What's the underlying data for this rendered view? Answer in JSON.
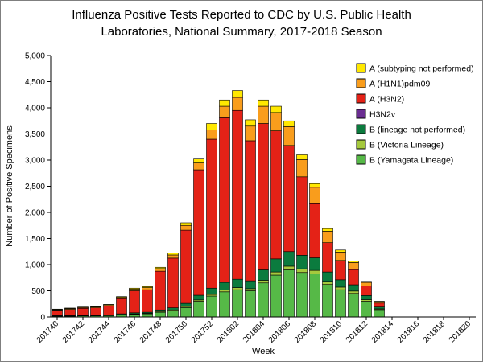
{
  "chart": {
    "title_line1": "Influenza Positive Tests Reported to CDC by U.S. Public Health",
    "title_line2": "Laboratories, National Summary, 2017-2018 Season"
  },
  "chart_data": {
    "type": "bar",
    "stacked": true,
    "title": "Influenza Positive Tests Reported to CDC by U.S. Public Health Laboratories, National Summary, 2017-2018 Season",
    "xlabel": "Week",
    "ylabel": "Number of Positive Specimens",
    "ylim": [
      0,
      5000
    ],
    "ytick_interval": 500,
    "grid": false,
    "legend_position": "top-right",
    "legend_order_top_to_bottom": [
      "A (subtyping not performed)",
      "A (H1N1)pdm09",
      "A (H3N2)",
      "H3N2v",
      "B (lineage not performed)",
      "B (Victoria Lineage)",
      "B (Yamagata Lineage)"
    ],
    "categories": [
      "201740",
      "201741",
      "201742",
      "201743",
      "201744",
      "201745",
      "201746",
      "201747",
      "201748",
      "201749",
      "201750",
      "201751",
      "201752",
      "201801",
      "201802",
      "201803",
      "201804",
      "201805",
      "201806",
      "201807",
      "201808",
      "201809",
      "201810",
      "201811",
      "201812",
      "201813",
      "201814",
      "201815",
      "201816",
      "201817",
      "201818",
      "201819",
      "201820"
    ],
    "xtick_labels_shown": [
      "201740",
      "201742",
      "201744",
      "201746",
      "201748",
      "201750",
      "201752",
      "201802",
      "201804",
      "201806",
      "201808",
      "201810",
      "201812",
      "201814",
      "201816",
      "201818",
      "201820"
    ],
    "ytick_labels": [
      "0",
      "500",
      "1,000",
      "1,500",
      "2,000",
      "2,500",
      "3,000",
      "3,500",
      "4,000",
      "4,500",
      "5,000"
    ],
    "series": [
      {
        "name": "B (Yamagata Lineage)",
        "color": "#56B947",
        "values": [
          15,
          15,
          20,
          20,
          25,
          35,
          50,
          60,
          90,
          120,
          180,
          300,
          400,
          480,
          520,
          500,
          650,
          800,
          900,
          850,
          820,
          620,
          520,
          450,
          300,
          140,
          0,
          0,
          0,
          0,
          0,
          0,
          0
        ]
      },
      {
        "name": "B (Victoria Lineage)",
        "color": "#A5C93D",
        "values": [
          5,
          5,
          5,
          5,
          5,
          10,
          10,
          10,
          15,
          15,
          20,
          25,
          30,
          35,
          40,
          40,
          50,
          60,
          70,
          70,
          70,
          60,
          50,
          45,
          30,
          15,
          0,
          0,
          0,
          0,
          0,
          0,
          0
        ]
      },
      {
        "name": "B (lineage not performed)",
        "color": "#0B7B3E",
        "values": [
          5,
          5,
          5,
          10,
          10,
          15,
          20,
          20,
          30,
          40,
          60,
          90,
          120,
          145,
          160,
          150,
          200,
          250,
          280,
          260,
          240,
          180,
          140,
          120,
          80,
          35,
          0,
          0,
          0,
          0,
          0,
          0,
          0
        ]
      },
      {
        "name": "H3N2v",
        "color": "#6A2D91",
        "values": [
          0,
          0,
          0,
          0,
          0,
          0,
          0,
          0,
          0,
          0,
          0,
          0,
          0,
          0,
          0,
          0,
          0,
          0,
          0,
          0,
          0,
          0,
          0,
          0,
          0,
          0,
          0,
          0,
          0,
          0,
          0,
          0,
          0
        ]
      },
      {
        "name": "A (H3N2)",
        "color": "#E42217",
        "values": [
          105,
          120,
          135,
          140,
          170,
          290,
          420,
          430,
          740,
          950,
          1400,
          2400,
          2850,
          3150,
          3230,
          2680,
          2800,
          2450,
          2030,
          1500,
          1050,
          560,
          370,
          290,
          180,
          75,
          0,
          0,
          0,
          0,
          0,
          0,
          0
        ]
      },
      {
        "name": "A (H1N1)pdm09",
        "color": "#F99D1C",
        "values": [
          10,
          15,
          15,
          15,
          20,
          25,
          30,
          40,
          50,
          60,
          90,
          130,
          180,
          220,
          250,
          280,
          330,
          350,
          360,
          330,
          300,
          220,
          160,
          135,
          70,
          25,
          0,
          0,
          0,
          0,
          0,
          0,
          0
        ]
      },
      {
        "name": "A (subtyping not performed)",
        "color": "#FFE800",
        "values": [
          10,
          10,
          10,
          10,
          10,
          15,
          20,
          20,
          25,
          35,
          50,
          75,
          120,
          120,
          130,
          120,
          120,
          120,
          110,
          90,
          70,
          50,
          40,
          30,
          20,
          10,
          0,
          0,
          0,
          0,
          0,
          0,
          0
        ]
      }
    ]
  }
}
